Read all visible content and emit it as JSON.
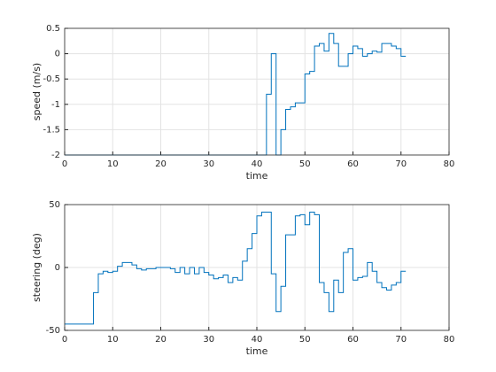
{
  "chart_data": [
    {
      "type": "stairs",
      "xlabel": "time",
      "ylabel": "speed (m/s)",
      "color": "#0072bd",
      "grid": true,
      "xlim": [
        0,
        80
      ],
      "xticks": [
        0,
        10,
        20,
        30,
        40,
        50,
        60,
        70,
        80
      ],
      "ylim": [
        -2,
        0.5
      ],
      "yticks": [
        -2,
        -1.5,
        -1,
        -0.5,
        0,
        0.5
      ],
      "x": [
        0,
        42,
        43,
        44,
        45,
        46,
        47,
        48,
        49,
        50,
        51,
        52,
        53,
        54,
        55,
        56,
        57,
        58,
        59,
        60,
        61,
        62,
        63,
        64,
        65,
        66,
        67,
        68,
        69,
        70,
        71
      ],
      "values": [
        -2,
        -0.8,
        0,
        -2,
        -1.5,
        -1.1,
        -1.05,
        -0.97,
        -0.97,
        -0.4,
        -0.35,
        0.15,
        0.2,
        0.05,
        0.4,
        0.2,
        -0.25,
        -0.25,
        0,
        0.15,
        0.1,
        -0.05,
        0,
        0.05,
        0.03,
        0.2,
        0.2,
        0.15,
        0.1,
        -0.05,
        -0.05
      ]
    },
    {
      "type": "stairs",
      "xlabel": "time",
      "ylabel": "steering (deg)",
      "color": "#0072bd",
      "grid": true,
      "xlim": [
        0,
        80
      ],
      "xticks": [
        0,
        10,
        20,
        30,
        40,
        50,
        60,
        70,
        80
      ],
      "ylim": [
        -50,
        50
      ],
      "yticks": [
        -50,
        0,
        50
      ],
      "x": [
        0,
        6,
        7,
        8,
        9,
        10,
        11,
        12,
        13,
        14,
        15,
        16,
        17,
        18,
        19,
        20,
        21,
        22,
        23,
        24,
        25,
        26,
        27,
        28,
        29,
        30,
        31,
        32,
        33,
        34,
        35,
        36,
        37,
        38,
        39,
        40,
        41,
        42,
        43,
        44,
        45,
        46,
        47,
        48,
        49,
        50,
        51,
        52,
        53,
        54,
        55,
        56,
        57,
        58,
        59,
        60,
        61,
        62,
        63,
        64,
        65,
        66,
        67,
        68,
        69,
        70,
        71
      ],
      "values": [
        -45,
        -20,
        -5,
        -3,
        -4,
        -3,
        1,
        4,
        4,
        2,
        -1,
        -2,
        -1,
        -1,
        0,
        0,
        0,
        -1,
        -4,
        0,
        -5,
        0,
        -5,
        0,
        -4,
        -6,
        -9,
        -8,
        -6,
        -12,
        -8,
        -10,
        5,
        15,
        27,
        41,
        44,
        44,
        -5,
        -35,
        -15,
        26,
        26,
        41,
        42,
        34,
        44,
        42,
        -12,
        -20,
        -35,
        -10,
        -20,
        12,
        15,
        -10,
        -8,
        -7,
        4,
        -3,
        -12,
        -16,
        -18,
        -14,
        -12,
        -3,
        -3
      ]
    }
  ]
}
